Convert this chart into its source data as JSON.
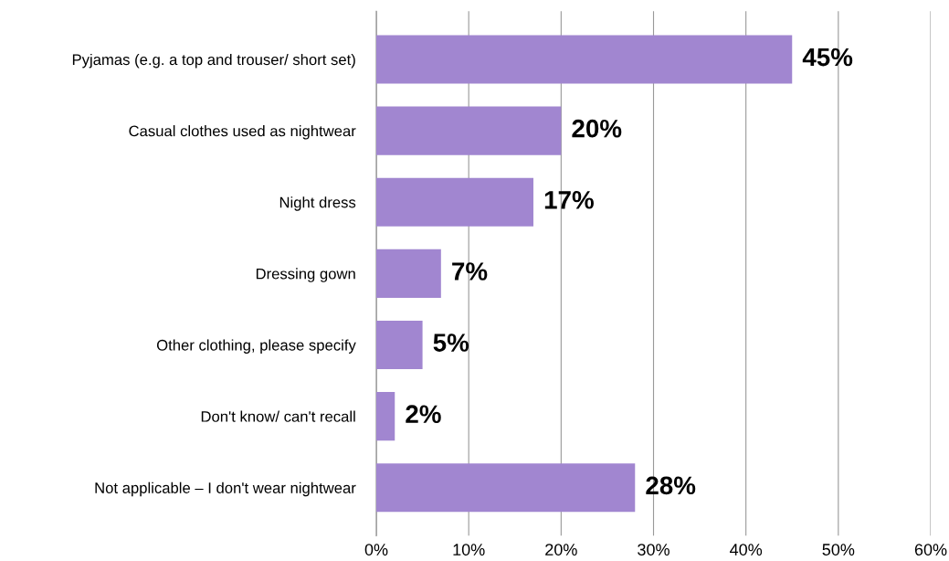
{
  "chart_data": {
    "type": "bar",
    "orientation": "horizontal",
    "categories": [
      "Pyjamas (e.g. a top and trouser/ short set)",
      "Casual clothes used as nightwear",
      "Night dress",
      "Dressing gown",
      "Other clothing, please specify",
      "Don't know/ can't recall",
      "Not applicable – I don't wear nightwear"
    ],
    "values": [
      45,
      20,
      17,
      7,
      5,
      2,
      28
    ],
    "color": "#a186d0",
    "xlim": [
      0,
      60
    ],
    "xticks": [
      {
        "value": 0,
        "label": "0%"
      },
      {
        "value": 10,
        "label": "10%"
      },
      {
        "value": 20,
        "label": "20%"
      },
      {
        "value": 30,
        "label": "30%"
      },
      {
        "value": 40,
        "label": "40%"
      },
      {
        "value": 50,
        "label": "50%"
      },
      {
        "value": 60,
        "label": "60%"
      }
    ],
    "value_labels": [
      "45%",
      "20%",
      "17%",
      "7%",
      "5%",
      "2%",
      "28%"
    ],
    "grid": "x",
    "legend": false
  }
}
